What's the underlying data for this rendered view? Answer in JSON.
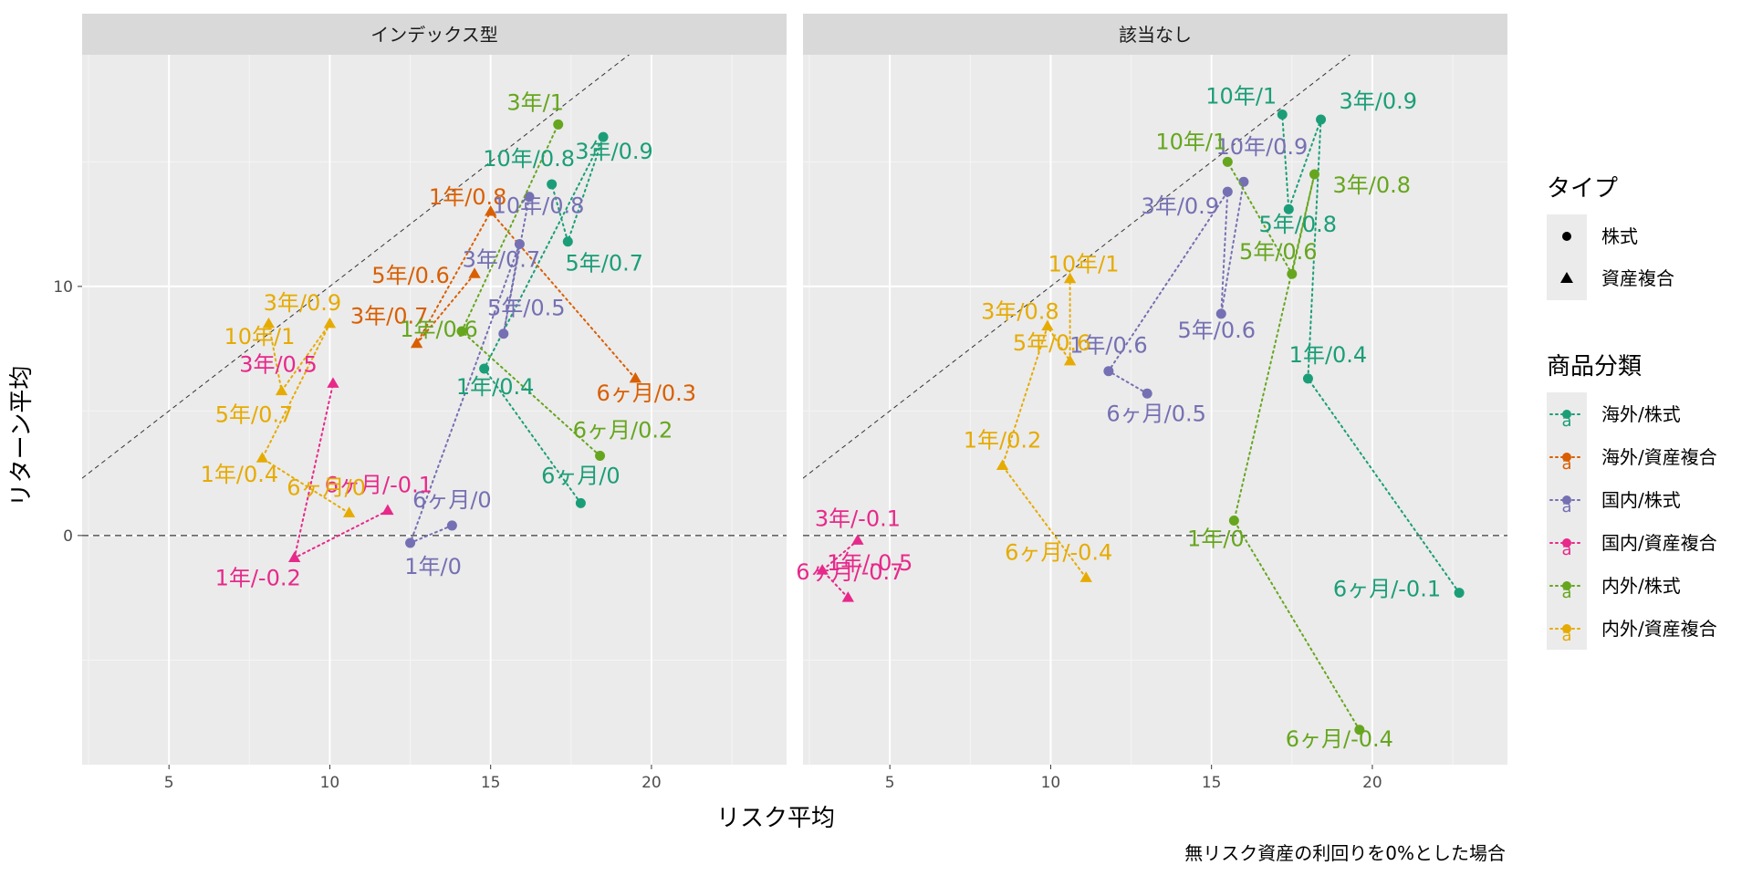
{
  "chart_data": {
    "type": "scatter",
    "xlabel": "リスク平均",
    "ylabel": "リターン平均",
    "caption": "無リスク資産の利回りを0%とした場合",
    "xlim": [
      2.3,
      24.2
    ],
    "ylim": [
      -9.2,
      19.3
    ],
    "xticks": [
      5,
      10,
      15,
      20
    ],
    "yticks": [
      0,
      10
    ],
    "grid": true,
    "reference_lines": [
      {
        "kind": "hline",
        "y": 0,
        "style": "dashed"
      },
      {
        "kind": "diagonal",
        "slope": 1,
        "intercept": 0,
        "style": "dashed"
      }
    ],
    "legend_placement": "right",
    "legend_type": {
      "title": "タイプ",
      "items": [
        {
          "label": "株式",
          "shape": "circle"
        },
        {
          "label": "資産複合",
          "shape": "triangle"
        }
      ]
    },
    "legend_category": {
      "title": "商品分類",
      "key_glyph": "a",
      "items": [
        {
          "label": "海外/株式",
          "color": "#1b9e77"
        },
        {
          "label": "海外/資産複合",
          "color": "#d95f02"
        },
        {
          "label": "国内/株式",
          "color": "#7570b3"
        },
        {
          "label": "国内/資産複合",
          "color": "#e7298a"
        },
        {
          "label": "内外/株式",
          "color": "#66a61e"
        },
        {
          "label": "内外/資産複合",
          "color": "#e6ab02"
        }
      ]
    },
    "panels": [
      {
        "title": "インデックス型",
        "series": [
          {
            "category": "海外/株式",
            "shape": "circle",
            "points": [
              {
                "x": 17.8,
                "y": 1.3,
                "label": "6ヶ月/0"
              },
              {
                "x": 14.8,
                "y": 6.7,
                "label": "1年/0.4"
              },
              {
                "x": 18.5,
                "y": 16.0,
                "label": "3年/0.9"
              },
              {
                "x": 17.4,
                "y": 11.8,
                "label": "5年/0.7"
              },
              {
                "x": 16.9,
                "y": 14.1,
                "label": "10年/0.8"
              }
            ]
          },
          {
            "category": "海外/資産複合",
            "shape": "triangle",
            "points": [
              {
                "x": 19.5,
                "y": 6.3,
                "label": "6ヶ月/0.3"
              },
              {
                "x": 15.0,
                "y": 13.0,
                "label": "1年/0.8"
              },
              {
                "x": 12.7,
                "y": 7.7,
                "label": "3年/0.7"
              },
              {
                "x": 14.5,
                "y": 10.5,
                "label": "5年/0.6"
              }
            ]
          },
          {
            "category": "国内/株式",
            "shape": "circle",
            "points": [
              {
                "x": 13.8,
                "y": 0.4,
                "label": "6ヶ月/0"
              },
              {
                "x": 12.5,
                "y": -0.3,
                "label": "1年/0"
              },
              {
                "x": 15.9,
                "y": 11.7,
                "label": "3年/0.7"
              },
              {
                "x": 15.4,
                "y": 8.1,
                "label": "5年/0.5"
              },
              {
                "x": 16.2,
                "y": 13.6,
                "label": "10年/0.8"
              }
            ]
          },
          {
            "category": "国内/資産複合",
            "shape": "triangle",
            "points": [
              {
                "x": 11.8,
                "y": 1.0,
                "label": "6ヶ月/-0.1"
              },
              {
                "x": 8.9,
                "y": -0.9,
                "label": "1年/-0.2"
              },
              {
                "x": 10.1,
                "y": 6.1,
                "label": "3年/0.5"
              }
            ]
          },
          {
            "category": "内外/株式",
            "shape": "circle",
            "points": [
              {
                "x": 18.4,
                "y": 3.2,
                "label": "6ヶ月/0.2"
              },
              {
                "x": 14.1,
                "y": 8.2,
                "label": "1年/0.6"
              },
              {
                "x": 17.1,
                "y": 16.5,
                "label": "3年/1"
              }
            ]
          },
          {
            "category": "内外/資産複合",
            "shape": "triangle",
            "points": [
              {
                "x": 10.6,
                "y": 0.9,
                "label": "6ヶ月/0"
              },
              {
                "x": 7.9,
                "y": 3.1,
                "label": "1年/0.4"
              },
              {
                "x": 10.0,
                "y": 8.5,
                "label": "3年/0.9"
              },
              {
                "x": 8.5,
                "y": 5.8,
                "label": "5年/0.7"
              },
              {
                "x": 8.1,
                "y": 8.5,
                "label": "10年/1"
              }
            ]
          }
        ]
      },
      {
        "title": "該当なし",
        "series": [
          {
            "category": "海外/株式",
            "shape": "circle",
            "points": [
              {
                "x": 22.7,
                "y": -2.3,
                "label": "6ヶ月/-0.1"
              },
              {
                "x": 18.0,
                "y": 6.3,
                "label": "1年/0.4"
              },
              {
                "x": 18.4,
                "y": 16.7,
                "label": "3年/0.9"
              },
              {
                "x": 17.4,
                "y": 13.1,
                "label": "5年/0.8"
              },
              {
                "x": 17.2,
                "y": 16.9,
                "label": "10年/1"
              }
            ]
          },
          {
            "category": "国内/株式",
            "shape": "circle",
            "points": [
              {
                "x": 13.0,
                "y": 5.7,
                "label": "6ヶ月/0.5"
              },
              {
                "x": 11.8,
                "y": 6.6,
                "label": "1年/0.6"
              },
              {
                "x": 15.5,
                "y": 13.8,
                "label": "3年/0.9"
              },
              {
                "x": 15.3,
                "y": 8.9,
                "label": "5年/0.6"
              },
              {
                "x": 16.0,
                "y": 14.2,
                "label": "10年/0.9"
              }
            ]
          },
          {
            "category": "国内/資産複合",
            "shape": "triangle",
            "points": [
              {
                "x": 3.7,
                "y": -2.5,
                "label": "6ヶ月/-0.7"
              },
              {
                "x": 2.9,
                "y": -1.4,
                "label": "1年/-0.5"
              },
              {
                "x": 4.0,
                "y": -0.2,
                "label": "3年/-0.1"
              }
            ]
          },
          {
            "category": "内外/株式",
            "shape": "circle",
            "points": [
              {
                "x": 19.6,
                "y": -7.8,
                "label": "6ヶ月/-0.4"
              },
              {
                "x": 15.7,
                "y": 0.6,
                "label": "1年/0"
              },
              {
                "x": 18.2,
                "y": 14.5,
                "label": "3年/0.8"
              },
              {
                "x": 17.5,
                "y": 10.5,
                "label": "5年/0.6"
              },
              {
                "x": 15.5,
                "y": 15.0,
                "label": "10年/1"
              }
            ]
          },
          {
            "category": "内外/資産複合",
            "shape": "triangle",
            "points": [
              {
                "x": 11.1,
                "y": -1.7,
                "label": "6ヶ月/-0.4"
              },
              {
                "x": 8.5,
                "y": 2.8,
                "label": "1年/0.2"
              },
              {
                "x": 9.9,
                "y": 8.4,
                "label": "3年/0.8"
              },
              {
                "x": 10.6,
                "y": 7.0,
                "label": "5年/0.6"
              },
              {
                "x": 10.6,
                "y": 10.3,
                "label": "10年/1"
              }
            ]
          }
        ]
      }
    ]
  }
}
